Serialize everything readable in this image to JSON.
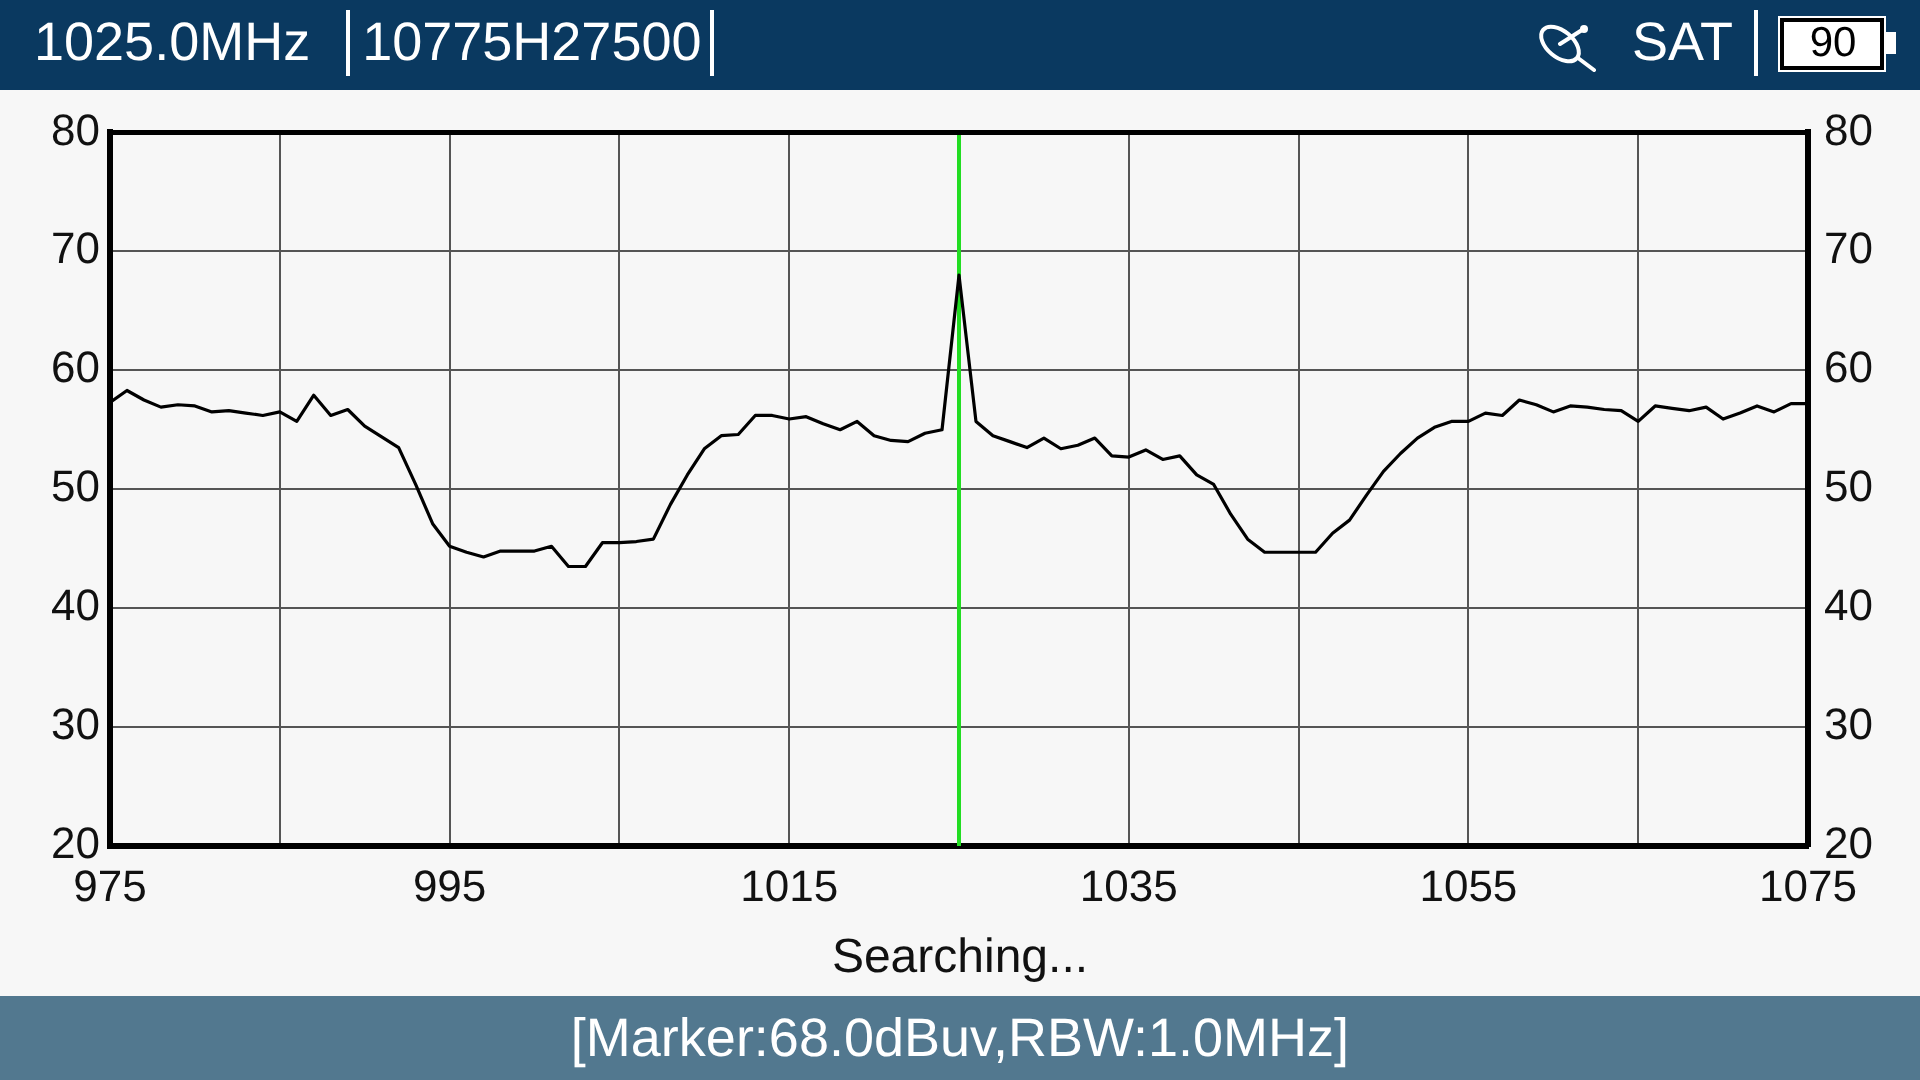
{
  "chart_data": {
    "type": "line",
    "annotations": [
      "1025.0MHz",
      "10775H27500",
      "SAT",
      "90",
      "Searching...",
      "[Marker:68.0dBuv,RBW:1.0MHz]"
    ],
    "x": [
      975,
      976,
      977,
      978,
      979,
      980,
      981,
      982,
      983,
      984,
      985,
      986,
      987,
      988,
      989,
      990,
      991,
      992,
      993,
      994,
      995,
      996,
      997,
      998,
      999,
      1000,
      1001,
      1002,
      1003,
      1004,
      1005,
      1006,
      1007,
      1008,
      1009,
      1010,
      1011,
      1012,
      1013,
      1014,
      1015,
      1016,
      1017,
      1018,
      1019,
      1020,
      1021,
      1022,
      1023,
      1024,
      1025,
      1026,
      1027,
      1028,
      1029,
      1030,
      1031,
      1032,
      1033,
      1034,
      1035,
      1036,
      1037,
      1038,
      1039,
      1040,
      1041,
      1042,
      1043,
      1044,
      1045,
      1046,
      1047,
      1048,
      1049,
      1050,
      1051,
      1052,
      1053,
      1054,
      1055,
      1056,
      1057,
      1058,
      1059,
      1060,
      1061,
      1062,
      1063,
      1064,
      1065,
      1066,
      1067,
      1068,
      1069,
      1070,
      1071,
      1072,
      1073,
      1074,
      1075
    ],
    "series": [
      {
        "color": "#000000",
        "values": [
          57.3,
          58.3,
          57.5,
          56.9,
          57.1,
          57.0,
          56.5,
          56.6,
          56.4,
          56.2,
          56.5,
          55.7,
          57.9,
          56.2,
          56.7,
          55.3,
          54.4,
          53.5,
          50.4,
          47.1,
          45.2,
          44.7,
          44.3,
          44.8,
          44.8,
          44.8,
          45.2,
          43.5,
          43.5,
          45.5,
          45.5,
          45.6,
          45.8,
          48.7,
          51.2,
          53.4,
          54.5,
          54.6,
          56.2,
          56.2,
          55.9,
          56.1,
          55.5,
          55.0,
          55.7,
          54.5,
          54.1,
          54.0,
          54.7,
          55.0,
          68.0,
          55.7,
          54.5,
          54.0,
          53.5,
          54.3,
          53.4,
          53.7,
          54.3,
          52.8,
          52.7,
          53.3,
          52.5,
          52.8,
          51.2,
          50.4,
          47.9,
          45.8,
          44.7,
          44.7,
          44.7,
          44.7,
          46.3,
          47.4,
          49.5,
          51.5,
          53.0,
          54.3,
          55.2,
          55.7,
          55.7,
          56.4,
          56.2,
          57.5,
          57.1,
          56.5,
          57.0,
          56.9,
          56.7,
          56.6,
          55.7,
          57.0,
          56.8,
          56.6,
          56.9,
          55.9,
          56.4,
          57.0,
          56.5,
          57.2,
          57.2
        ]
      }
    ],
    "xlim": [
      975,
      1075
    ],
    "xticks": [
      975,
      {
        "value": 985,
        "label": null
      },
      995,
      {
        "value": 1005,
        "label": null
      },
      1015,
      {
        "value": 1025,
        "label": null
      },
      1035,
      {
        "value": 1045,
        "label": null
      },
      1055,
      {
        "value": 1065,
        "label": null
      },
      1075
    ],
    "ylim": [
      20,
      80
    ],
    "yticks": [
      20,
      30,
      40,
      50,
      60,
      70,
      80
    ],
    "y2lim": [
      20,
      80
    ],
    "y2ticks": [
      20,
      30,
      40,
      50,
      60,
      70,
      80
    ],
    "ref_lines": [
      {
        "axis": "x",
        "value": 1025,
        "color": "#22dd22"
      }
    ],
    "grid": true,
    "marker": "none",
    "line_style": "solid"
  }
}
